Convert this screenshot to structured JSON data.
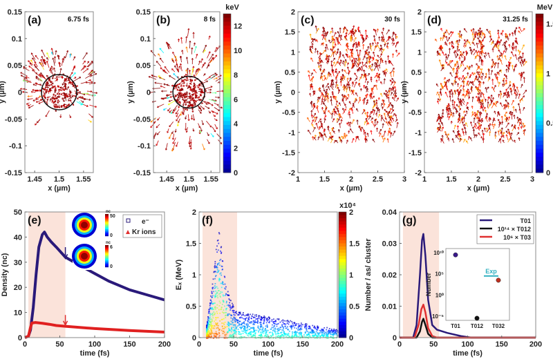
{
  "chart_data": [
    {
      "id": "a",
      "type": "vector-field",
      "panel_label": "(a)",
      "annotation": "6.75 fs",
      "xlabel": "x (µm)",
      "ylabel": "y (µm)",
      "xlim": [
        1.43,
        1.57
      ],
      "ylim": [
        -0.15,
        0.15
      ],
      "xticks": [
        "1.45",
        "1.5",
        "1.55"
      ],
      "yticks": [
        "0.15",
        "0.1",
        "0.05",
        "0",
        "-0.05",
        "-0.1",
        "-0.15"
      ],
      "colorscale": "jet",
      "cluster_center": [
        1.5,
        0
      ],
      "cluster_radius": 0.036
    },
    {
      "id": "b",
      "type": "vector-field",
      "panel_label": "(b)",
      "annotation": "8 fs",
      "xlabel": "x (µm)",
      "ylabel": "y (µm)",
      "xlim": [
        1.42,
        1.57
      ],
      "ylim": [
        -0.15,
        0.15
      ],
      "xticks": [
        "1.45",
        "1.5",
        "1.55"
      ],
      "yticks": [
        "0.15",
        "0.1",
        "0.05",
        "0",
        "-0.05",
        "-0.1",
        "-0.15"
      ],
      "colorbar": {
        "unit": "keV",
        "range": [
          0,
          13
        ],
        "ticks": [
          "12",
          "10",
          "8",
          "6",
          "4",
          "2",
          "0"
        ]
      },
      "cluster_center": [
        1.5,
        0
      ],
      "cluster_radius": 0.036
    },
    {
      "id": "c",
      "type": "vector-field",
      "panel_label": "(c)",
      "annotation": "30 fs",
      "xlabel": "x (µm)",
      "ylabel": "y (µm)",
      "xlim": [
        1,
        3
      ],
      "ylim": [
        -2,
        2
      ],
      "xticks": [
        "1",
        "1.5",
        "2",
        "2.5",
        "3"
      ],
      "yticks": [
        "2",
        "1.5",
        "1",
        "0.5",
        "0",
        "-0.5",
        "-1",
        "-1.5",
        "-2"
      ]
    },
    {
      "id": "d",
      "type": "vector-field",
      "panel_label": "(d)",
      "annotation": "31.25 fs",
      "xlabel": "x (µm)",
      "ylabel": "y (µm)",
      "xlim": [
        1,
        3
      ],
      "ylim": [
        -2,
        2
      ],
      "xticks": [
        "1",
        "1.5",
        "2",
        "2.5",
        "3"
      ],
      "yticks": [
        "2",
        "1.5",
        "1",
        "0.5",
        "0",
        "-0.5",
        "-1",
        "-1.5",
        "-2"
      ],
      "colorbar": {
        "unit": "MeV",
        "range": [
          0,
          1.6
        ],
        "ticks": [
          "1.5",
          "1",
          "0.5",
          "0"
        ]
      }
    },
    {
      "id": "e",
      "type": "line",
      "panel_label": "(e)",
      "xlabel": "time (fs)",
      "ylabel": "Density (nc)",
      "xlim": [
        0,
        200
      ],
      "ylim": [
        0,
        50
      ],
      "xticks": [
        "0",
        "50",
        "100",
        "150",
        "200"
      ],
      "yticks": [
        "0",
        "10",
        "20",
        "30",
        "40",
        "50"
      ],
      "shaded_region": [
        5,
        58
      ],
      "arrows_at": 58,
      "legend": {
        "position": "top-right",
        "entries": [
          "e⁻",
          "Kr ions"
        ]
      },
      "series": [
        {
          "name": "e⁻",
          "color": "#2a1a7a",
          "x": [
            0,
            5,
            8,
            12,
            16,
            20,
            25,
            28,
            32,
            38,
            45,
            58,
            80,
            100,
            120,
            150,
            175,
            200
          ],
          "y": [
            0,
            0.5,
            3,
            12,
            25,
            36,
            41,
            42,
            40,
            38,
            36,
            32,
            28.5,
            25.5,
            22.5,
            19,
            17,
            15
          ]
        },
        {
          "name": "Kr ions",
          "color": "#e02020",
          "x": [
            0,
            5,
            8,
            10,
            15,
            25,
            35,
            45,
            58,
            100,
            150,
            200
          ],
          "y": [
            0,
            0.5,
            4,
            5.8,
            6,
            5.7,
            5.3,
            4.8,
            4.5,
            3.6,
            2.8,
            2.2
          ]
        }
      ],
      "insets": [
        {
          "unit": "nc",
          "range_labels": [
            "50",
            "0"
          ]
        },
        {
          "unit": "nc",
          "range_labels": [
            "6",
            "0"
          ]
        }
      ]
    },
    {
      "id": "f",
      "type": "heatmap",
      "panel_label": "(f)",
      "xlabel": "time (fs)",
      "ylabel": "Eₓ (MeV)",
      "xlim": [
        0,
        200
      ],
      "ylim": [
        0,
        2
      ],
      "xticks": [
        "0",
        "50",
        "100",
        "150",
        "200"
      ],
      "yticks": [
        "0",
        "0.5",
        "1",
        "1.5",
        "2"
      ],
      "shaded_region": [
        5,
        55
      ],
      "colorbar": {
        "exponent": "x10⁴",
        "range": [
          0,
          2
        ],
        "ticks": [
          "2",
          "1.5",
          "1",
          "0.5",
          "0"
        ]
      },
      "envelope": {
        "x": [
          10,
          20,
          25,
          28,
          32,
          38,
          45,
          55,
          80,
          120,
          160,
          200
        ],
        "ymax": [
          0.2,
          1.0,
          1.55,
          1.75,
          1.4,
          0.9,
          0.6,
          0.42,
          0.38,
          0.3,
          0.22,
          0.14
        ]
      }
    },
    {
      "id": "g",
      "type": "line",
      "panel_label": "(g)",
      "xlabel": "time (fs)",
      "ylabel": "Number / as/ cluster",
      "xlim": [
        0,
        200
      ],
      "ylim": [
        0,
        0.04
      ],
      "xticks": [
        "0",
        "50",
        "100",
        "150",
        "200"
      ],
      "yticks": [
        "0",
        "0.01",
        "0.02",
        "0.03",
        "0.04"
      ],
      "shaded_region": [
        5,
        58
      ],
      "legend": {
        "position": "top-right",
        "entries": [
          "T01",
          "10¹⁴ × T012",
          "10⁶ × T03"
        ]
      },
      "series": [
        {
          "name": "T01",
          "color": "#2a1a7a",
          "x": [
            0,
            20,
            25,
            30,
            33,
            35,
            38,
            42,
            48,
            55,
            70,
            90,
            105,
            200
          ],
          "y": [
            0,
            0,
            0.004,
            0.02,
            0.031,
            0.033,
            0.026,
            0.012,
            0.004,
            0.0025,
            0.0015,
            0.0005,
            0,
            0
          ]
        },
        {
          "name": "10¹⁴ × T012",
          "color": "#111111",
          "x": [
            0,
            25,
            30,
            33,
            35,
            38,
            42,
            48,
            200
          ],
          "y": [
            0,
            0,
            0.002,
            0.005,
            0.006,
            0.004,
            0.0012,
            0,
            0
          ]
        },
        {
          "name": "10⁶ × T03",
          "color": "#e03030",
          "x": [
            0,
            22,
            28,
            32,
            35,
            38,
            42,
            48,
            55,
            200
          ],
          "y": [
            0,
            0,
            0.004,
            0.009,
            0.0105,
            0.008,
            0.003,
            0.0005,
            0,
            0
          ]
        }
      ],
      "inset": {
        "type": "scatter",
        "ylabel": "Number",
        "yscale": "log",
        "ylim_exp": [
          -6,
          11
        ],
        "yticks": [
          "10¹⁰",
          "10⁵",
          "10⁰",
          "10⁻⁵"
        ],
        "categories": [
          "T01",
          "T012",
          "T032"
        ],
        "values_log10": [
          9.5,
          -5.5,
          3.5
        ],
        "colors": [
          "#3a1a8a",
          "#111111",
          "#c03020"
        ],
        "reference": {
          "label": "Exp",
          "log10": 4.5,
          "color": "#30b0c0",
          "span": [
            "T012",
            "T032"
          ]
        }
      }
    }
  ]
}
